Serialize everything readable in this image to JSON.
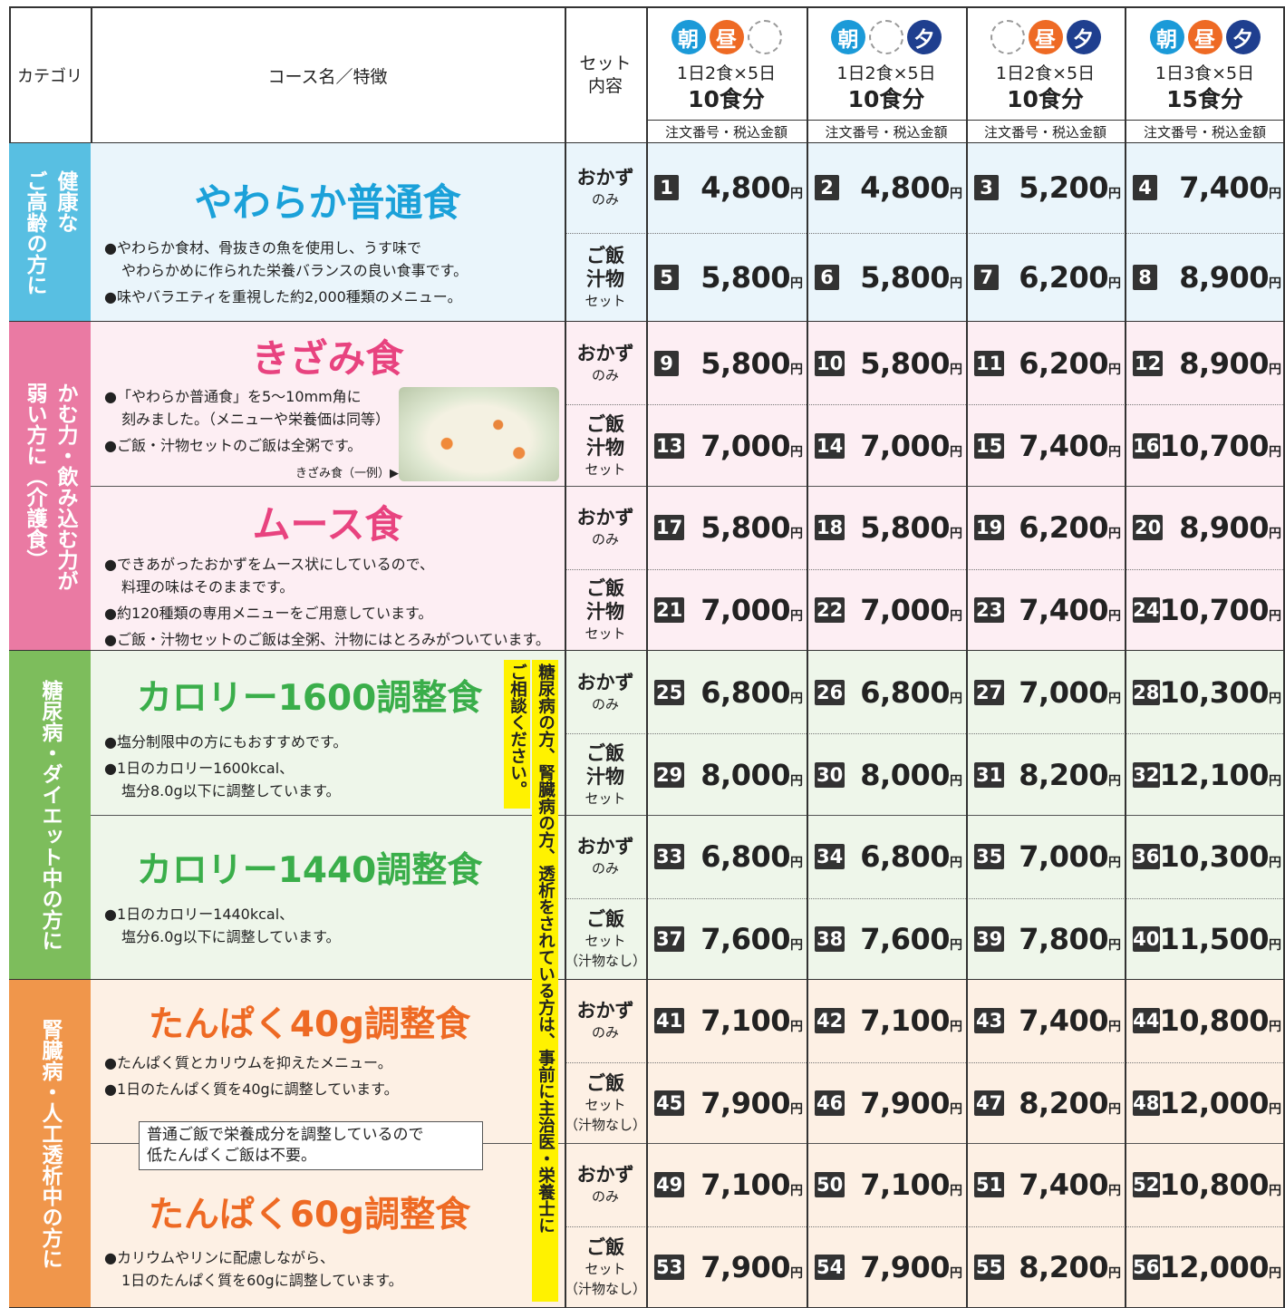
{
  "header": {
    "category": "カテゴリ",
    "course": "コース名／特徴",
    "set": [
      "セット",
      "内容"
    ],
    "order_label": "注文番号・税込金額",
    "plans": [
      {
        "meals": [
          {
            "label": "朝",
            "color": "#1b9ad8"
          },
          {
            "label": "昼",
            "color": "#ee6a24"
          },
          null
        ],
        "days": "1日2食×5日",
        "count": "10食分"
      },
      {
        "meals": [
          {
            "label": "朝",
            "color": "#1b9ad8"
          },
          null,
          {
            "label": "夕",
            "color": "#1f3f8f"
          }
        ],
        "days": "1日2食×5日",
        "count": "10食分"
      },
      {
        "meals": [
          null,
          {
            "label": "昼",
            "color": "#ee6a24"
          },
          {
            "label": "夕",
            "color": "#1f3f8f"
          }
        ],
        "days": "1日2食×5日",
        "count": "10食分"
      },
      {
        "meals": [
          {
            "label": "朝",
            "color": "#1b9ad8"
          },
          {
            "label": "昼",
            "color": "#ee6a24"
          },
          {
            "label": "夕",
            "color": "#1f3f8f"
          }
        ],
        "days": "1日3食×5日",
        "count": "15食分"
      }
    ]
  },
  "yen": "円",
  "side_note": [
    "糖尿病の方、腎臓病の方、透析をされている方は、事前に主治医・栄養士に",
    "ご相談ください。"
  ],
  "categories": [
    {
      "label": [
        "健康な",
        "ご高齢の方に"
      ],
      "color": "#58bfe2",
      "background": "#eaf5fb",
      "courses": [
        {
          "name": "やわらか普通食",
          "color": "#1ba1d9",
          "bullets": [
            [
              "●やわらか食材、骨抜きの魚を使用し、うす味で",
              "やわらかめに作られた栄養バランスの良い食事です。"
            ],
            [
              "●味やバラエティを重視した約2,000種類のメニュー。"
            ]
          ],
          "rows": [
            {
              "set": {
                "main": [
                  "おかず"
                ],
                "sub": [
                  "のみ"
                ]
              },
              "orders": [
                [
                  1,
                  "4,800"
                ],
                [
                  2,
                  "4,800"
                ],
                [
                  3,
                  "5,200"
                ],
                [
                  4,
                  "7,400"
                ]
              ]
            },
            {
              "set": {
                "main": [
                  "ご飯",
                  "汁物"
                ],
                "sub": [
                  "セット"
                ]
              },
              "orders": [
                [
                  5,
                  "5,800"
                ],
                [
                  6,
                  "5,800"
                ],
                [
                  7,
                  "6,200"
                ],
                [
                  8,
                  "8,900"
                ]
              ]
            }
          ]
        }
      ]
    },
    {
      "label": [
        "かむ力・飲み込む力が",
        "弱い方に（介護食）"
      ],
      "color": "#ea7aa3",
      "background": "#fdeef3",
      "courses": [
        {
          "name": "きざみ食",
          "color": "#e8437f",
          "bullets": [
            [
              "●「やわらか普通食」を5〜10mm角に",
              "刻みました。（メニューや栄養価は同等）"
            ],
            [
              "●ご飯・汁物セットのご飯は全粥です。"
            ]
          ],
          "image_caption": "きざみ食（一例）▶",
          "rows": [
            {
              "set": {
                "main": [
                  "おかず"
                ],
                "sub": [
                  "のみ"
                ]
              },
              "orders": [
                [
                  9,
                  "5,800"
                ],
                [
                  10,
                  "5,800"
                ],
                [
                  11,
                  "6,200"
                ],
                [
                  12,
                  "8,900"
                ]
              ]
            },
            {
              "set": {
                "main": [
                  "ご飯",
                  "汁物"
                ],
                "sub": [
                  "セット"
                ]
              },
              "orders": [
                [
                  13,
                  "7,000"
                ],
                [
                  14,
                  "7,000"
                ],
                [
                  15,
                  "7,400"
                ],
                [
                  16,
                  "10,700"
                ]
              ]
            }
          ]
        },
        {
          "name": "ムース食",
          "color": "#e8437f",
          "bullets": [
            [
              "●できあがったおかずをムース状にしているので、",
              "料理の味はそのままです。"
            ],
            [
              "●約120種類の専用メニューをご用意しています。"
            ],
            [
              "●ご飯・汁物セットのご飯は全粥、汁物にはとろみがついています。"
            ]
          ],
          "rows": [
            {
              "set": {
                "main": [
                  "おかず"
                ],
                "sub": [
                  "のみ"
                ]
              },
              "orders": [
                [
                  17,
                  "5,800"
                ],
                [
                  18,
                  "5,800"
                ],
                [
                  19,
                  "6,200"
                ],
                [
                  20,
                  "8,900"
                ]
              ]
            },
            {
              "set": {
                "main": [
                  "ご飯",
                  "汁物"
                ],
                "sub": [
                  "セット"
                ]
              },
              "orders": [
                [
                  21,
                  "7,000"
                ],
                [
                  22,
                  "7,000"
                ],
                [
                  23,
                  "7,400"
                ],
                [
                  24,
                  "10,700"
                ]
              ]
            }
          ]
        }
      ]
    },
    {
      "label": [
        "糖尿病・ダイエット中の方に"
      ],
      "color": "#7dbd5c",
      "background": "#eef6ea",
      "courses": [
        {
          "name": "カロリー1600調整食",
          "color": "#3aae4a",
          "bullets": [
            [
              "●塩分制限中の方にもおすすめです。"
            ],
            [
              "●1日のカロリー1600kcal、",
              "塩分8.0g以下に調整しています。"
            ]
          ],
          "rows": [
            {
              "set": {
                "main": [
                  "おかず"
                ],
                "sub": [
                  "のみ"
                ]
              },
              "orders": [
                [
                  25,
                  "6,800"
                ],
                [
                  26,
                  "6,800"
                ],
                [
                  27,
                  "7,000"
                ],
                [
                  28,
                  "10,300"
                ]
              ]
            },
            {
              "set": {
                "main": [
                  "ご飯",
                  "汁物"
                ],
                "sub": [
                  "セット"
                ]
              },
              "orders": [
                [
                  29,
                  "8,000"
                ],
                [
                  30,
                  "8,000"
                ],
                [
                  31,
                  "8,200"
                ],
                [
                  32,
                  "12,100"
                ]
              ]
            }
          ]
        },
        {
          "name": "カロリー1440調整食",
          "color": "#3aae4a",
          "bullets": [
            [
              "●1日のカロリー1440kcal、",
              "塩分6.0g以下に調整しています。"
            ]
          ],
          "rows": [
            {
              "set": {
                "main": [
                  "おかず"
                ],
                "sub": [
                  "のみ"
                ]
              },
              "orders": [
                [
                  33,
                  "6,800"
                ],
                [
                  34,
                  "6,800"
                ],
                [
                  35,
                  "7,000"
                ],
                [
                  36,
                  "10,300"
                ]
              ]
            },
            {
              "set": {
                "main": [
                  "ご飯"
                ],
                "sub": [
                  "セット",
                  "（汁物なし）"
                ]
              },
              "orders": [
                [
                  37,
                  "7,600"
                ],
                [
                  38,
                  "7,600"
                ],
                [
                  39,
                  "7,800"
                ],
                [
                  40,
                  "11,500"
                ]
              ]
            }
          ]
        }
      ]
    },
    {
      "label": [
        "腎臓病・人工透析中の方に"
      ],
      "color": "#f0964b",
      "background": "#fdf0e4",
      "courses": [
        {
          "name": "たんぱく40g調整食",
          "color": "#ee6a24",
          "bullets": [
            [
              "●たんぱく質とカリウムを抑えたメニュー。"
            ],
            [
              "●1日のたんぱく質を40gに調整しています。"
            ]
          ],
          "note": [
            "普通ご飯で栄養成分を調整しているので",
            "低たんぱくご飯は不要。"
          ],
          "rows": [
            {
              "set": {
                "main": [
                  "おかず"
                ],
                "sub": [
                  "のみ"
                ]
              },
              "orders": [
                [
                  41,
                  "7,100"
                ],
                [
                  42,
                  "7,100"
                ],
                [
                  43,
                  "7,400"
                ],
                [
                  44,
                  "10,800"
                ]
              ]
            },
            {
              "set": {
                "main": [
                  "ご飯"
                ],
                "sub": [
                  "セット",
                  "（汁物なし）"
                ]
              },
              "orders": [
                [
                  45,
                  "7,900"
                ],
                [
                  46,
                  "7,900"
                ],
                [
                  47,
                  "8,200"
                ],
                [
                  48,
                  "12,000"
                ]
              ]
            }
          ]
        },
        {
          "name": "たんぱく60g調整食",
          "color": "#ee6a24",
          "bullets": [
            [
              "●カリウムやリンに配慮しながら、",
              "1日のたんぱく質を60gに調整しています。"
            ]
          ],
          "rows": [
            {
              "set": {
                "main": [
                  "おかず"
                ],
                "sub": [
                  "のみ"
                ]
              },
              "orders": [
                [
                  49,
                  "7,100"
                ],
                [
                  50,
                  "7,100"
                ],
                [
                  51,
                  "7,400"
                ],
                [
                  52,
                  "10,800"
                ]
              ]
            },
            {
              "set": {
                "main": [
                  "ご飯"
                ],
                "sub": [
                  "セット",
                  "（汁物なし）"
                ]
              },
              "orders": [
                [
                  53,
                  "7,900"
                ],
                [
                  54,
                  "7,900"
                ],
                [
                  55,
                  "8,200"
                ],
                [
                  56,
                  "12,000"
                ]
              ]
            }
          ]
        }
      ]
    }
  ]
}
